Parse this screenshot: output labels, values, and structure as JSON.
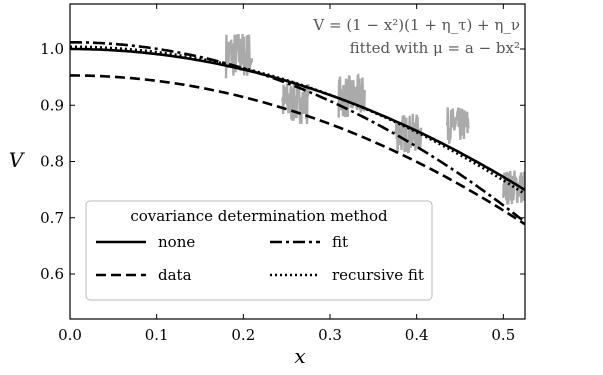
{
  "chart_data": {
    "type": "line",
    "title": "",
    "xlabel": "x",
    "ylabel": "V",
    "xlim": [
      0.0,
      0.525
    ],
    "ylim": [
      0.52,
      1.08
    ],
    "xticks": [
      0.0,
      0.1,
      0.2,
      0.3,
      0.4,
      0.5
    ],
    "xtick_labels": [
      "0.0",
      "0.1",
      "0.2",
      "0.3",
      "0.4",
      "0.5"
    ],
    "yticks": [
      0.6,
      0.7,
      0.8,
      0.9,
      1.0
    ],
    "ytick_labels": [
      "0.6",
      "0.7",
      "0.8",
      "0.9",
      "1.0"
    ],
    "grid": false,
    "annotations": [
      "V = (1 − x²)(1 + η_τ) + η_ν",
      "fitted with μ = a − bx²"
    ],
    "legend": {
      "title": "covariance determination method",
      "placement": "lower-left",
      "entries": [
        "none",
        "fit",
        "data",
        "recursive fit"
      ]
    },
    "data_points": {
      "color": "#aaaaaa",
      "clusters": [
        {
          "x": [
            0.18,
            0.21
          ],
          "y_range": [
            0.93,
            1.05
          ]
        },
        {
          "x": [
            0.245,
            0.275
          ],
          "y_range": [
            0.85,
            0.96
          ]
        },
        {
          "x": [
            0.31,
            0.34
          ],
          "y_range": [
            0.86,
            0.97
          ]
        },
        {
          "x": [
            0.375,
            0.405
          ],
          "y_range": [
            0.8,
            0.9
          ]
        },
        {
          "x": [
            0.435,
            0.46
          ],
          "y_range": [
            0.82,
            0.91
          ]
        },
        {
          "x": [
            0.5,
            0.525
          ],
          "y_range": [
            0.71,
            0.8
          ]
        }
      ]
    },
    "series": [
      {
        "name": "none",
        "style": "solid",
        "color": "#000000",
        "a": 1.0,
        "b": 0.91
      },
      {
        "name": "fit",
        "style": "dashdot",
        "color": "#000000",
        "a": 1.012,
        "b": 1.16
      },
      {
        "name": "data",
        "style": "dashed",
        "color": "#000000",
        "a": 0.953,
        "b": 0.96
      },
      {
        "name": "recursive fit",
        "style": "dotted",
        "color": "#000000",
        "a": 1.004,
        "b": 0.95
      }
    ]
  }
}
